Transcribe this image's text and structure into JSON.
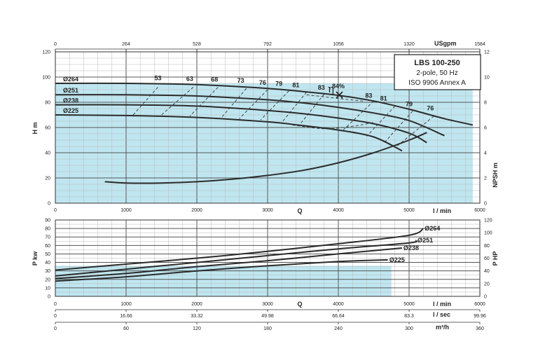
{
  "chart_data": [
    {
      "type": "line",
      "title": "LBS 100-250",
      "subtitle": [
        "2-pole, 50 Hz",
        "ISO 9906 Annex A"
      ],
      "xlabel": "Q",
      "ylabel": "H m",
      "y2label": "NPSH m",
      "x_unit": "l / min",
      "top_axis_label": "USgpm",
      "xlim": [
        0,
        6000
      ],
      "ylim": [
        0,
        120
      ],
      "y2lim": [
        0,
        12
      ],
      "x_ticks": [
        "0",
        "1000",
        "2000",
        "3000",
        "4000",
        "5000",
        "6000"
      ],
      "y_ticks": [
        "0",
        "20",
        "40",
        "60",
        "80",
        "100",
        "120"
      ],
      "y2_ticks": [
        "0",
        "2",
        "4",
        "6",
        "8",
        "10",
        "12"
      ],
      "top_ticks": [
        "0",
        "264",
        "528",
        "792",
        "1056",
        "1320",
        "1584"
      ],
      "grid": true,
      "series": [
        {
          "name": "Ø264",
          "x": [
            0,
            1000,
            2000,
            3000,
            3500,
            4000,
            4500,
            5000,
            5500,
            5900
          ],
          "y": [
            95,
            95,
            94,
            91,
            88.5,
            85.5,
            81,
            74.5,
            67,
            62
          ]
        },
        {
          "name": "Ø251",
          "x": [
            0,
            1000,
            2000,
            3000,
            3500,
            4000,
            4500,
            5000,
            5500
          ],
          "y": [
            86,
            86,
            85,
            82,
            79.5,
            76,
            71.5,
            65.5,
            53.5
          ]
        },
        {
          "name": "Ø238",
          "x": [
            0,
            1000,
            2000,
            3000,
            3500,
            4000,
            4500,
            5000,
            5250
          ],
          "y": [
            78,
            78,
            77,
            73.5,
            71,
            67.5,
            63,
            55.5,
            48
          ]
        },
        {
          "name": "Ø225",
          "x": [
            0,
            1000,
            2000,
            3000,
            3500,
            4000,
            4500,
            4900
          ],
          "y": [
            70,
            69.5,
            68,
            64.5,
            61.5,
            58,
            52.5,
            41.5
          ]
        },
        {
          "name": "NPSH",
          "axis": "right",
          "x": [
            700,
            1000,
            1500,
            2000,
            2500,
            3000,
            3500,
            4000,
            4500,
            5000,
            5250
          ],
          "y": [
            1.7,
            1.6,
            1.6,
            1.7,
            1.9,
            2.2,
            2.6,
            3.2,
            4.0,
            5.0,
            5.6
          ]
        }
      ],
      "efficiency_labels": [
        "53",
        "63",
        "68",
        "73",
        "76",
        "79",
        "81",
        "83",
        "84%",
        "83",
        "81",
        "79",
        "76"
      ],
      "best_efficiency_symbol": "η"
    },
    {
      "type": "line",
      "ylabel": "P kw",
      "y2label": "P HP",
      "xlabel": "Q",
      "x_unit": "l / min",
      "xlim": [
        0,
        6000
      ],
      "ylim": [
        0,
        90
      ],
      "y2lim": [
        0,
        120
      ],
      "x_ticks": [
        "0",
        "1000",
        "2000",
        "3000",
        "4000",
        "5000",
        "6000"
      ],
      "y_ticks": [
        "0",
        "10",
        "20",
        "30",
        "40",
        "50",
        "60",
        "70",
        "80",
        "90"
      ],
      "y2_ticks": [
        "0",
        "20",
        "40",
        "60",
        "80",
        "100",
        "120"
      ],
      "grid": true,
      "series": [
        {
          "name": "Ø264",
          "x": [
            0,
            1000,
            2000,
            3000,
            4000,
            5000,
            5200
          ],
          "y": [
            31,
            38,
            45,
            53,
            62,
            72,
            80
          ]
        },
        {
          "name": "Ø251",
          "x": [
            0,
            1000,
            2000,
            3000,
            4000,
            5000,
            5100
          ],
          "y": [
            24,
            32,
            40,
            48,
            56,
            63,
            66
          ]
        },
        {
          "name": "Ø238",
          "x": [
            0,
            1000,
            2000,
            3000,
            4000,
            4900
          ],
          "y": [
            21,
            27,
            35,
            42,
            50,
            57
          ]
        },
        {
          "name": "Ø225",
          "x": [
            0,
            1000,
            2000,
            3000,
            4000,
            4700
          ],
          "y": [
            18,
            23,
            30,
            36,
            41,
            43
          ]
        }
      ],
      "extra_axes": [
        {
          "unit": "l / sec",
          "ticks": [
            "0",
            "16.66",
            "33.32",
            "49.98",
            "66.64",
            "83.3",
            "99.96"
          ]
        },
        {
          "unit": "m³/h",
          "ticks": [
            "0",
            "60",
            "120",
            "180",
            "240",
            "300",
            "360"
          ]
        }
      ]
    }
  ]
}
